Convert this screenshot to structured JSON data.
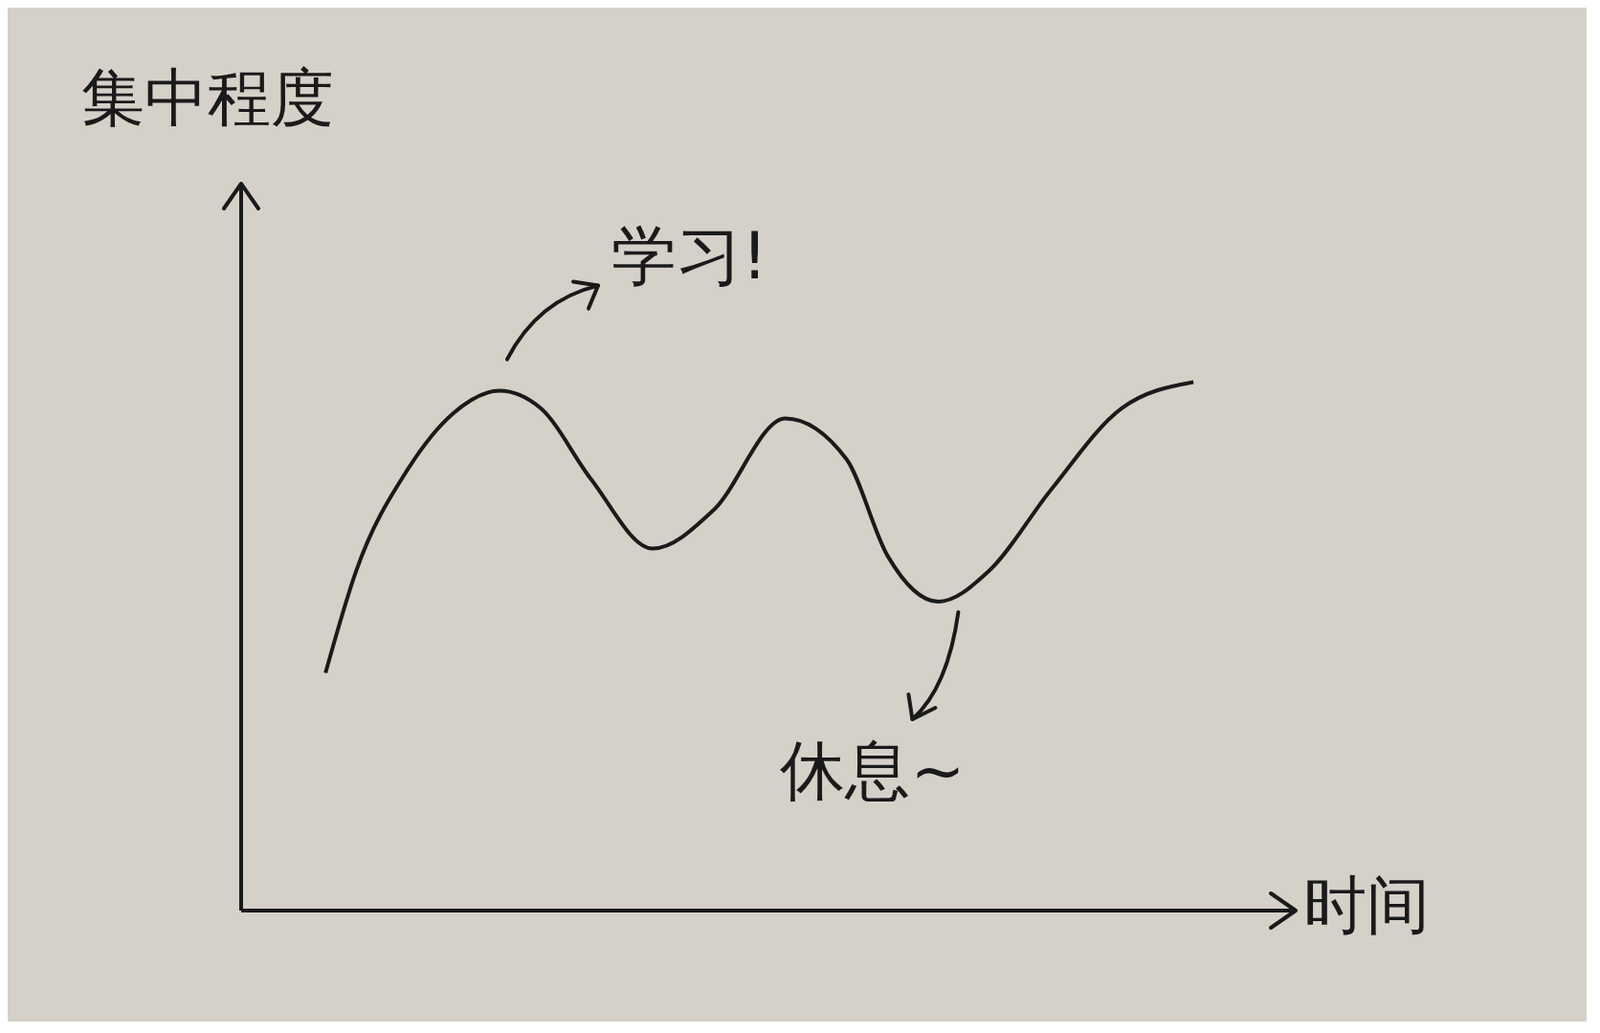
{
  "chart_data": {
    "type": "line",
    "x_label": "时间",
    "y_label": "集中程度",
    "x": [
      8.0,
      10.9,
      15.8,
      20.1,
      24.5,
      28.4,
      33.2,
      39.0,
      44.8,
      51.6,
      57.4,
      61.3,
      66.1,
      70.9,
      76.8,
      83.5,
      90.3
    ],
    "values": [
      32.7,
      46.7,
      60.7,
      68.4,
      71.5,
      69.1,
      59.3,
      49.8,
      55.1,
      67.7,
      62.1,
      48.8,
      42.5,
      46.7,
      57.9,
      69.1,
      72.7
    ],
    "color": "#1a1a1a",
    "xlim": [
      0,
      100
    ],
    "ylim": [
      0,
      100
    ],
    "grid": false,
    "tick_labels": false,
    "annotations": [
      {
        "text": "学习!",
        "x": 24.5,
        "y": 71.5
      },
      {
        "text": "休息~",
        "x": 66.1,
        "y": 42.5
      }
    ]
  }
}
